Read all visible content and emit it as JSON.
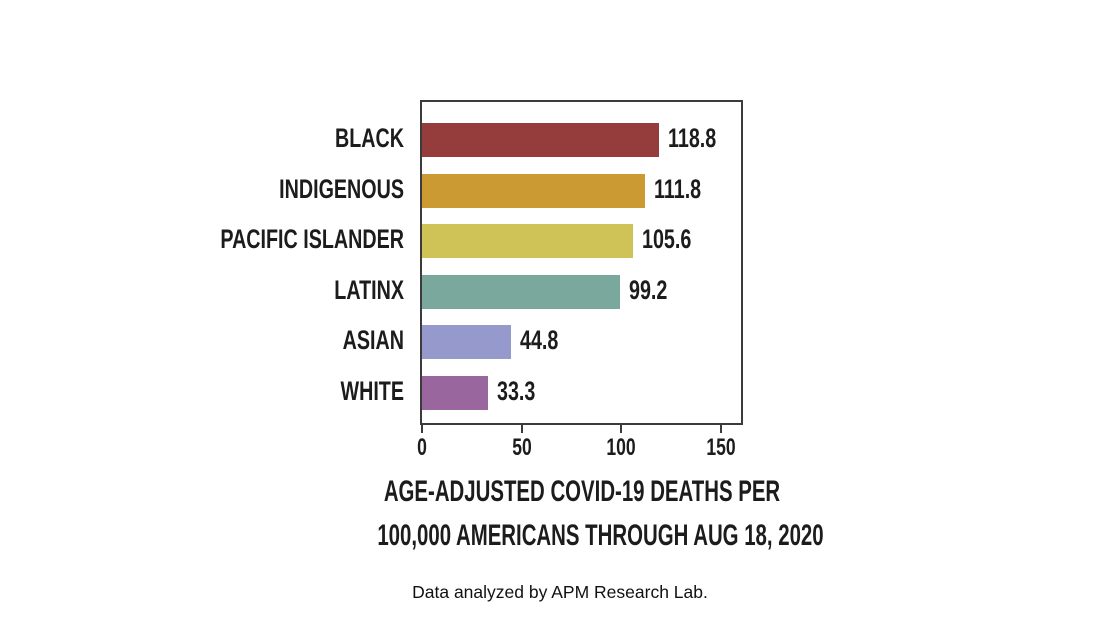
{
  "chart_data": {
    "type": "bar",
    "orientation": "horizontal",
    "categories": [
      "BLACK",
      "INDIGENOUS",
      "PACIFIC ISLANDER",
      "LATINX",
      "ASIAN",
      "WHITE"
    ],
    "values": [
      118.8,
      111.8,
      105.6,
      99.2,
      44.8,
      33.3
    ],
    "value_labels": [
      "118.8",
      "111.8",
      "105.6",
      "99.2",
      "44.8",
      "33.3"
    ],
    "bar_colors": [
      "#943d3c",
      "#cc9a33",
      "#cfc257",
      "#7aa89c",
      "#9699cc",
      "#9a669e"
    ],
    "x_ticks": [
      0,
      50,
      100,
      150
    ],
    "xlim": [
      0,
      160
    ],
    "grid": false,
    "legend": null,
    "xlabel_line1": "AGE-ADJUSTED COVID-19 DEATHS PER",
    "xlabel_line2": "100,000 AMERICANS THROUGH AUG 18, 2020",
    "title": "",
    "ylabel": ""
  },
  "footer": {
    "credit": "Data analyzed by APM Research Lab."
  },
  "colors": {
    "axis": "#3b3b3b",
    "text": "#1c1c1c",
    "background": "#ffffff"
  }
}
